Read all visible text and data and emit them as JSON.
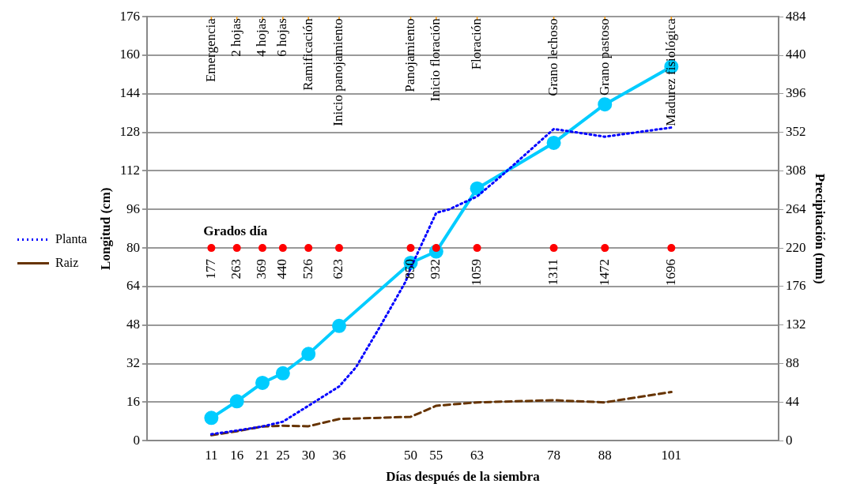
{
  "chart_data": {
    "type": "line",
    "xlabel": "Días después de la siembra",
    "ylabel": "Longitud (cm)",
    "y2label": "Precipitación (mm)",
    "xlim": [
      -1.6,
      122
    ],
    "xticks": [
      11,
      16,
      21,
      25,
      30,
      36,
      50,
      55,
      63,
      78,
      88,
      101
    ],
    "ylim": [
      0,
      176
    ],
    "yticks": [
      0,
      16,
      32,
      48,
      64,
      80,
      96,
      112,
      128,
      144,
      160,
      176
    ],
    "y2lim": [
      0,
      484
    ],
    "y2ticks": [
      0,
      44,
      88,
      132,
      176,
      220,
      264,
      308,
      352,
      396,
      440,
      484
    ],
    "grid": "y",
    "legend": "left",
    "series": [
      {
        "name": "Planta",
        "color": "#0000ff",
        "line_style": "dotted",
        "marker": "none",
        "x": [
          11,
          16,
          21,
          25,
          30,
          36,
          39.3,
          44.1,
          49,
          50,
          55,
          57.5,
          63,
          68.1,
          78,
          88,
          101
        ],
        "values": [
          2.7,
          4.2,
          5.9,
          7.9,
          14.5,
          22.5,
          30.5,
          47.7,
          66,
          71.7,
          94.6,
          96,
          101.4,
          110.6,
          129.4,
          126.2,
          130
        ]
      },
      {
        "name": "Raiz",
        "color": "#663300",
        "line_style": "dashed",
        "marker": "none",
        "x": [
          11,
          16,
          21,
          25,
          30,
          36,
          50,
          55,
          63,
          78,
          88,
          101
        ],
        "values": [
          2.3,
          3.9,
          5.9,
          6.2,
          6.0,
          9.0,
          9.9,
          14.5,
          15.9,
          16.8,
          15.9,
          20.2
        ]
      },
      {
        "color": "#00ccff",
        "line_style": "solid",
        "marker": "circle",
        "axis": "y2",
        "x": [
          11,
          16,
          21,
          25,
          30,
          36,
          50,
          55,
          63,
          78,
          88,
          101
        ],
        "values": [
          26,
          45,
          66,
          77,
          99,
          131,
          203,
          216,
          288,
          340,
          384,
          427
        ]
      },
      {
        "type": "scatter",
        "color": "#ff0000",
        "marker": "circle",
        "x": [
          11,
          16,
          21,
          25,
          30,
          36,
          50,
          55,
          63,
          78,
          88,
          101
        ],
        "values": [
          80,
          80,
          80,
          80,
          80,
          80,
          80,
          80,
          80,
          80,
          80,
          80
        ]
      }
    ],
    "ref_lines": [
      {
        "axis": "x",
        "value": 11,
        "label": "Emergencia",
        "color": "#ff9900"
      },
      {
        "axis": "x",
        "value": 16,
        "label": "2 hojas",
        "color": "#ff9900"
      },
      {
        "axis": "x",
        "value": 21,
        "label": "4 hojas",
        "color": "#ff9900"
      },
      {
        "axis": "x",
        "value": 25,
        "label": "6 hojas",
        "color": "#ff9900"
      },
      {
        "axis": "x",
        "value": 30,
        "label": "Ramificación",
        "color": "#ff9900"
      },
      {
        "axis": "x",
        "value": 36,
        "label": "Inicio panojamiento",
        "color": "#ff9900"
      },
      {
        "axis": "x",
        "value": 50,
        "label": "Panojamiento",
        "color": "#ff9900"
      },
      {
        "axis": "x",
        "value": 55,
        "label": "Inicio floración",
        "color": "#ff9900"
      },
      {
        "axis": "x",
        "value": 63,
        "label": "Floración",
        "color": "#ff9900"
      },
      {
        "axis": "x",
        "value": 78,
        "label": "Grano lechoso",
        "color": "#ff9900"
      },
      {
        "axis": "x",
        "value": 88,
        "label": "Grano pastoso",
        "color": "#ff9900"
      },
      {
        "axis": "x",
        "value": 101,
        "label": "Madurez fisiológica",
        "color": "#ff9900"
      }
    ],
    "annotations": [
      {
        "text": "Grados día",
        "x": 11,
        "y": 80
      },
      {
        "text": "177",
        "x": 11,
        "y": 80
      },
      {
        "text": "263",
        "x": 16,
        "y": 80
      },
      {
        "text": "369",
        "x": 21,
        "y": 80
      },
      {
        "text": "440",
        "x": 25,
        "y": 80
      },
      {
        "text": "526",
        "x": 30,
        "y": 80
      },
      {
        "text": "623",
        "x": 36,
        "y": 80
      },
      {
        "text": "850",
        "x": 50,
        "y": 80
      },
      {
        "text": "932",
        "x": 55,
        "y": 80
      },
      {
        "text": "1059",
        "x": 63,
        "y": 80
      },
      {
        "text": "1311",
        "x": 78,
        "y": 80
      },
      {
        "text": "1472",
        "x": 88,
        "y": 80
      },
      {
        "text": "1696",
        "x": 101,
        "y": 80
      }
    ]
  }
}
